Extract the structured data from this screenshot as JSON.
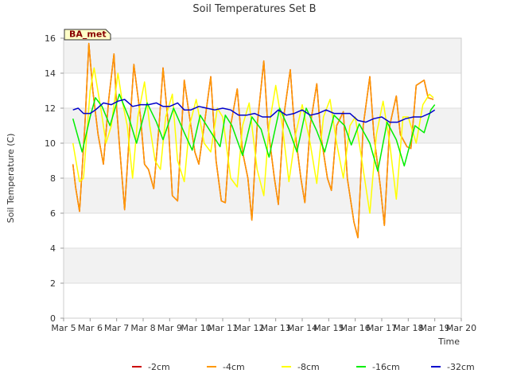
{
  "chart_data": {
    "type": "line",
    "title": "Soil Temperatures Set B",
    "xlabel": "Time",
    "ylabel": "Soil Temperature (C)",
    "station_label": "BA_met",
    "xlim": [
      0,
      15
    ],
    "ylim": [
      0,
      16
    ],
    "x_ticks": [
      {
        "value": 0,
        "label": "Mar 5"
      },
      {
        "value": 1,
        "label": "Mar 6"
      },
      {
        "value": 2,
        "label": "Mar 7"
      },
      {
        "value": 3,
        "label": "Mar 8"
      },
      {
        "value": 4,
        "label": "Mar 9"
      },
      {
        "value": 5,
        "label": "Mar 10"
      },
      {
        "value": 6,
        "label": "Mar 11"
      },
      {
        "value": 7,
        "label": "Mar 12"
      },
      {
        "value": 8,
        "label": "Mar 13"
      },
      {
        "value": 9,
        "label": "Mar 14"
      },
      {
        "value": 10,
        "label": "Mar 15"
      },
      {
        "value": 11,
        "label": "Mar 16"
      },
      {
        "value": 12,
        "label": "Mar 17"
      },
      {
        "value": 13,
        "label": "Mar 18"
      },
      {
        "value": 14,
        "label": "Mar 19"
      },
      {
        "value": 15,
        "label": "Mar 20"
      }
    ],
    "y_ticks": [
      0,
      2,
      4,
      6,
      8,
      10,
      12,
      14,
      16
    ],
    "grid": true,
    "legend_position": "bottom",
    "series": [
      {
        "name": "-2cm",
        "color": "#cc0000",
        "x": [
          0.35,
          0.45,
          0.6,
          0.8,
          0.95,
          1.1,
          1.3,
          1.5,
          1.7,
          1.9,
          2.0,
          2.1,
          2.3,
          2.5,
          2.65,
          2.9,
          3.05,
          3.2,
          3.4,
          3.6,
          3.75,
          3.95,
          4.1,
          4.3,
          4.55,
          4.75,
          4.95,
          5.1,
          5.3,
          5.55,
          5.75,
          5.95,
          6.1,
          6.3,
          6.55,
          6.75,
          6.95,
          7.1,
          7.3,
          7.55,
          7.7,
          7.95,
          8.1,
          8.3,
          8.55,
          8.7,
          8.95,
          9.1,
          9.3,
          9.55,
          9.7,
          9.95,
          10.1,
          10.3,
          10.55,
          10.7,
          10.95,
          11.1,
          11.3,
          11.55,
          11.7,
          11.95,
          12.1,
          12.3,
          12.55,
          12.7,
          12.95,
          13.1,
          13.3,
          13.6,
          13.75,
          13.95,
          14.1,
          14.3
        ],
        "y": [
          8.8,
          7.5,
          6.1,
          11.0,
          15.7,
          13.0,
          10.5,
          8.8,
          12.5,
          15.1,
          12.0,
          10.0,
          6.2,
          11.0,
          14.5,
          11.5,
          8.8,
          8.5,
          7.4,
          11.0,
          14.3,
          11.0,
          7.0,
          6.7,
          13.6,
          11.5,
          9.5,
          8.8,
          11.0,
          13.8,
          9.0,
          6.7,
          6.6,
          11.0,
          13.1,
          9.5,
          8.0,
          5.6,
          11.0,
          14.7,
          11.0,
          8.0,
          6.5,
          11.5,
          14.2,
          11.0,
          8.0,
          6.6,
          11.0,
          13.4,
          10.5,
          8.0,
          7.3,
          11.0,
          11.8,
          8.0,
          5.5,
          4.6,
          11.0,
          13.8,
          10.5,
          7.5,
          5.3,
          11.0,
          12.7,
          10.5,
          9.8,
          9.7,
          13.3,
          13.6,
          12.6,
          12.5,
          null,
          null
        ]
      },
      {
        "name": "-4cm",
        "color": "#ff9900",
        "x": [
          0.35,
          0.45,
          0.6,
          0.8,
          0.95,
          1.1,
          1.3,
          1.5,
          1.7,
          1.9,
          2.0,
          2.1,
          2.3,
          2.5,
          2.65,
          2.9,
          3.05,
          3.2,
          3.4,
          3.6,
          3.75,
          3.95,
          4.1,
          4.3,
          4.55,
          4.75,
          4.95,
          5.1,
          5.3,
          5.55,
          5.75,
          5.95,
          6.1,
          6.3,
          6.55,
          6.75,
          6.95,
          7.1,
          7.3,
          7.55,
          7.7,
          7.95,
          8.1,
          8.3,
          8.55,
          8.7,
          8.95,
          9.1,
          9.3,
          9.55,
          9.7,
          9.95,
          10.1,
          10.3,
          10.55,
          10.7,
          10.95,
          11.1,
          11.3,
          11.55,
          11.7,
          11.95,
          12.1,
          12.3,
          12.55,
          12.7,
          12.95,
          13.1,
          13.3,
          13.6,
          13.75,
          13.95
        ],
        "y": [
          8.8,
          7.5,
          6.1,
          11.0,
          15.7,
          13.0,
          10.5,
          8.8,
          12.5,
          15.1,
          12.0,
          10.0,
          6.2,
          11.0,
          14.5,
          11.5,
          8.8,
          8.5,
          7.4,
          11.0,
          14.3,
          11.0,
          7.0,
          6.7,
          13.6,
          11.5,
          9.5,
          8.8,
          11.0,
          13.8,
          9.0,
          6.7,
          6.6,
          11.0,
          13.1,
          9.5,
          8.0,
          5.6,
          11.0,
          14.7,
          11.0,
          8.0,
          6.5,
          11.5,
          14.2,
          11.0,
          8.0,
          6.6,
          11.0,
          13.4,
          10.5,
          8.0,
          7.3,
          11.0,
          11.8,
          8.0,
          5.5,
          4.6,
          11.0,
          13.8,
          10.5,
          7.5,
          5.3,
          11.0,
          12.7,
          10.5,
          9.8,
          9.7,
          13.3,
          13.6,
          12.6,
          12.5
        ]
      },
      {
        "name": "-8cm",
        "color": "#ffff00",
        "x": [
          0.35,
          0.6,
          0.75,
          1.0,
          1.15,
          1.4,
          1.6,
          1.8,
          2.05,
          2.2,
          2.4,
          2.6,
          2.8,
          3.05,
          3.25,
          3.45,
          3.65,
          3.85,
          4.1,
          4.3,
          4.55,
          4.75,
          5.0,
          5.3,
          5.55,
          5.8,
          6.0,
          6.3,
          6.55,
          6.75,
          7.0,
          7.3,
          7.55,
          7.75,
          8.0,
          8.25,
          8.5,
          8.75,
          9.0,
          9.3,
          9.55,
          9.8,
          10.05,
          10.3,
          10.55,
          10.8,
          11.0,
          11.3,
          11.55,
          11.8,
          12.05,
          12.3,
          12.55,
          12.8,
          13.0,
          13.3,
          13.55,
          13.8,
          13.95
        ],
        "y": [
          10.0,
          7.8,
          8.0,
          13.0,
          14.3,
          12.0,
          10.0,
          11.0,
          14.0,
          12.5,
          11.0,
          8.0,
          11.5,
          13.5,
          11.0,
          9.0,
          8.5,
          11.5,
          12.8,
          9.0,
          7.8,
          11.0,
          12.5,
          10.0,
          9.5,
          12.0,
          11.5,
          8.0,
          7.5,
          11.0,
          12.3,
          8.5,
          7.0,
          11.0,
          13.3,
          11.0,
          7.8,
          10.5,
          12.2,
          10.0,
          7.7,
          11.5,
          12.5,
          10.0,
          8.0,
          11.0,
          11.5,
          8.5,
          6.0,
          10.5,
          12.4,
          10.0,
          6.8,
          11.5,
          11.5,
          10.0,
          12.2,
          12.8,
          12.6
        ]
      },
      {
        "name": "-16cm",
        "color": "#00ee00",
        "x": [
          0.35,
          0.7,
          1.0,
          1.2,
          1.45,
          1.75,
          2.1,
          2.45,
          2.75,
          3.15,
          3.5,
          3.75,
          4.15,
          4.55,
          4.85,
          5.15,
          5.4,
          5.9,
          6.1,
          6.35,
          6.75,
          7.1,
          7.45,
          7.75,
          8.15,
          8.5,
          8.8,
          9.15,
          9.55,
          9.85,
          10.2,
          10.6,
          10.85,
          11.15,
          11.55,
          11.85,
          12.2,
          12.55,
          12.85,
          13.25,
          13.6,
          13.85,
          14.0
        ],
        "y": [
          11.4,
          9.5,
          11.5,
          12.6,
          12.1,
          11.0,
          12.8,
          11.5,
          10.0,
          12.3,
          11.2,
          10.2,
          12.0,
          10.6,
          9.6,
          11.6,
          11.0,
          9.8,
          11.6,
          11.0,
          9.3,
          11.5,
          10.8,
          9.2,
          12.0,
          10.8,
          9.5,
          12.0,
          10.7,
          9.5,
          11.6,
          11.0,
          9.9,
          11.1,
          10.0,
          8.4,
          11.2,
          10.2,
          8.7,
          11.0,
          10.6,
          11.9,
          12.2
        ]
      },
      {
        "name": "-32cm",
        "color": "#0000cc",
        "x": [
          0.35,
          0.55,
          0.75,
          1.0,
          1.2,
          1.5,
          1.8,
          2.05,
          2.3,
          2.6,
          2.9,
          3.2,
          3.5,
          3.75,
          4.0,
          4.3,
          4.55,
          4.8,
          5.1,
          5.4,
          5.7,
          6.0,
          6.3,
          6.6,
          6.9,
          7.2,
          7.5,
          7.8,
          8.1,
          8.4,
          8.7,
          9.0,
          9.3,
          9.6,
          9.9,
          10.2,
          10.5,
          10.8,
          11.1,
          11.4,
          11.7,
          12.0,
          12.3,
          12.6,
          12.9,
          13.2,
          13.5,
          13.8,
          14.0
        ],
        "y": [
          11.9,
          12.0,
          11.7,
          11.7,
          11.9,
          12.3,
          12.2,
          12.4,
          12.5,
          12.1,
          12.2,
          12.2,
          12.3,
          12.1,
          12.1,
          12.3,
          11.9,
          11.9,
          12.1,
          12.0,
          11.9,
          12.0,
          11.9,
          11.6,
          11.6,
          11.7,
          11.5,
          11.5,
          11.9,
          11.6,
          11.7,
          11.9,
          11.6,
          11.7,
          11.9,
          11.7,
          11.7,
          11.7,
          11.3,
          11.2,
          11.4,
          11.5,
          11.2,
          11.2,
          11.4,
          11.5,
          11.5,
          11.7,
          11.9
        ]
      }
    ]
  }
}
